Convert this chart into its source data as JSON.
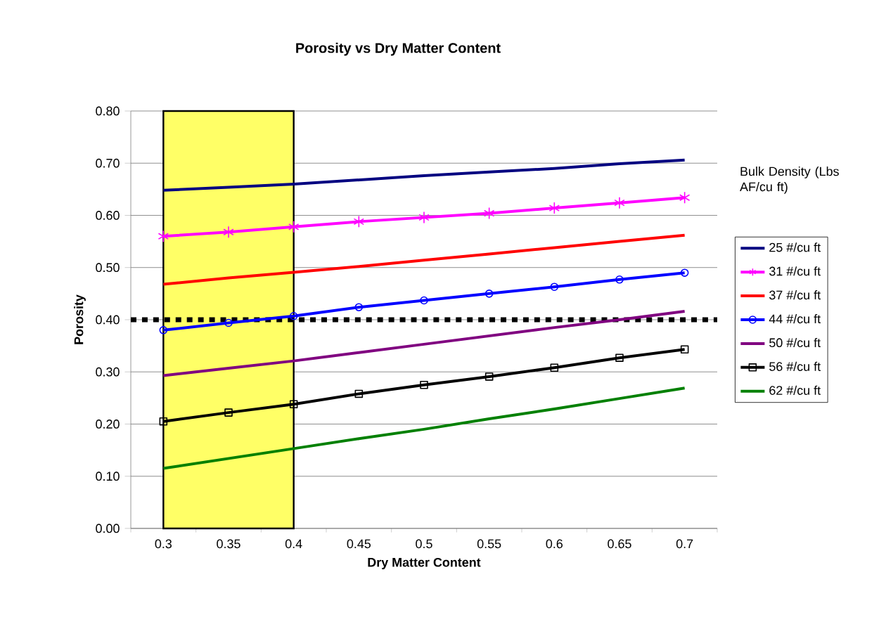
{
  "chart_data": {
    "type": "line",
    "title": "Porosity vs Dry Matter Content",
    "xlabel": "Dry Matter Content",
    "ylabel": "Porosity",
    "legend_title": "Bulk Density (Lbs AF/cu ft)",
    "categories": [
      "0.3",
      "0.35",
      "0.4",
      "0.45",
      "0.5",
      "0.55",
      "0.6",
      "0.65",
      "0.7"
    ],
    "series": [
      {
        "name": "25 #/cu ft",
        "color": "#000080",
        "marker": "none",
        "values": [
          0.648,
          0.654,
          0.66,
          0.668,
          0.676,
          0.683,
          0.69,
          0.699,
          0.706
        ]
      },
      {
        "name": "31 #/cu ft",
        "color": "#ff00ff",
        "marker": "cross",
        "values": [
          0.56,
          0.568,
          0.578,
          0.588,
          0.596,
          0.604,
          0.614,
          0.624,
          0.634
        ]
      },
      {
        "name": "37 #/cu ft",
        "color": "#ff0000",
        "marker": "none",
        "values": [
          0.468,
          0.48,
          0.491,
          0.502,
          0.514,
          0.526,
          0.538,
          0.55,
          0.562
        ]
      },
      {
        "name": "44 #/cu ft",
        "color": "#0000ff",
        "marker": "circle",
        "values": [
          0.38,
          0.394,
          0.407,
          0.424,
          0.437,
          0.45,
          0.463,
          0.477,
          0.49
        ]
      },
      {
        "name": "50 #/cu ft",
        "color": "#800080",
        "marker": "none",
        "values": [
          0.293,
          0.307,
          0.321,
          0.337,
          0.353,
          0.369,
          0.385,
          0.4,
          0.416
        ]
      },
      {
        "name": "56 #/cu ft",
        "color": "#000000",
        "marker": "square",
        "values": [
          0.205,
          0.222,
          0.238,
          0.258,
          0.275,
          0.291,
          0.308,
          0.327,
          0.343
        ]
      },
      {
        "name": "62 #/cu ft",
        "color": "#008000",
        "marker": "none",
        "values": [
          0.115,
          0.134,
          0.153,
          0.172,
          0.19,
          0.21,
          0.229,
          0.249,
          0.269
        ]
      }
    ],
    "ylim": [
      0,
      0.8
    ],
    "yticks": [
      {
        "value": 0,
        "label": "0.00"
      },
      {
        "value": 0.1,
        "label": "0.10"
      },
      {
        "value": 0.2,
        "label": "0.20"
      },
      {
        "value": 0.3,
        "label": "0.30"
      },
      {
        "value": 0.4,
        "label": "0.40"
      },
      {
        "value": 0.5,
        "label": "0.50"
      },
      {
        "value": 0.6,
        "label": "0.60"
      },
      {
        "value": 0.7,
        "label": "0.70"
      },
      {
        "value": 0.8,
        "label": "0.80"
      }
    ],
    "grid": "y",
    "legend": "right",
    "ref_lines": [
      {
        "axis": "y",
        "value": 0.4,
        "color": "#000000",
        "line_style": "dotted"
      }
    ],
    "bands": [
      {
        "axis": "x",
        "from": "0.3",
        "to": "0.4",
        "color": "#ffff66"
      }
    ]
  }
}
